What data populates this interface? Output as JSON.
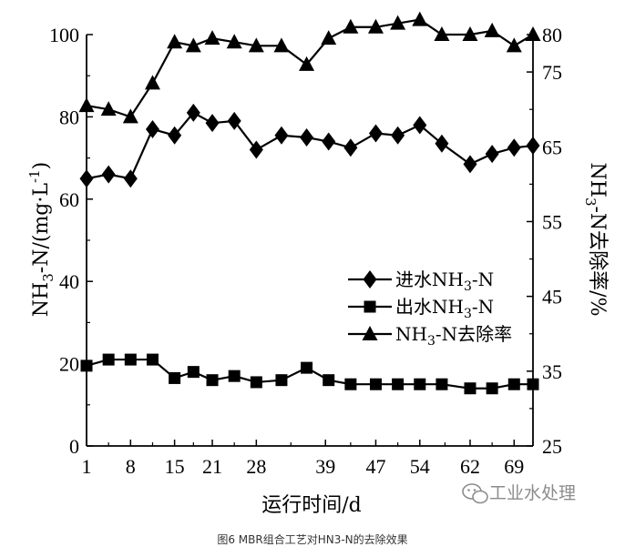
{
  "chart_data": {
    "type": "line",
    "title": "",
    "xlabel": "运行时间/d",
    "ylabel_left": "NH3-N/(mg·L-1)",
    "ylabel_right": "NH3-N去除率/%",
    "xlim": [
      1,
      72
    ],
    "ylim_left": [
      0,
      100
    ],
    "ylim_right": [
      25,
      80
    ],
    "x_ticks": [
      1,
      8,
      15,
      21,
      28,
      39,
      47,
      54,
      62,
      69
    ],
    "x_tick_labels": [
      "1",
      "8",
      "15",
      "21",
      "28",
      "39",
      "47",
      "54",
      "62",
      "69"
    ],
    "y_ticks_left": [
      0,
      20,
      40,
      60,
      80,
      100
    ],
    "y_ticks_right": [
      25,
      35,
      45,
      55,
      65,
      75,
      80
    ],
    "x": [
      1,
      4.5,
      8,
      11.5,
      15,
      18,
      21,
      24.5,
      28,
      32,
      36,
      39.5,
      43,
      47,
      50.5,
      54,
      57.5,
      62,
      65.5,
      69,
      72
    ],
    "series": [
      {
        "name": "进水NH3-N",
        "axis": "left",
        "marker": "diamond",
        "values": [
          65,
          66,
          65,
          77,
          75.5,
          81,
          78.5,
          79,
          72,
          75.5,
          75,
          74,
          72.5,
          76,
          75.5,
          78,
          73.5,
          68.5,
          71,
          72.5,
          73
        ]
      },
      {
        "name": "出水NH3-N",
        "axis": "left",
        "marker": "square",
        "values": [
          19.5,
          21,
          21,
          21,
          16.5,
          18,
          16,
          17,
          15.5,
          16,
          19,
          16,
          15,
          15,
          15,
          15,
          15,
          14,
          14,
          15,
          15
        ]
      },
      {
        "name": "NH3-N去除率",
        "axis": "right",
        "marker": "triangle",
        "values": [
          70.5,
          70,
          69,
          73.5,
          79,
          78.5,
          79.5,
          79,
          78.5,
          78.5,
          76,
          79.5,
          81,
          81,
          81.5,
          82,
          80,
          80,
          80.5,
          78.5,
          80
        ]
      }
    ],
    "legend": {
      "placement": "center-right",
      "entries": [
        {
          "base": "进水NH",
          "sub": "3",
          "tail": "-N"
        },
        {
          "base": "出水NH",
          "sub": "3",
          "tail": "-N"
        },
        {
          "base": "NH",
          "sub": "3",
          "tail": "-N去除率"
        }
      ]
    },
    "grid": false
  },
  "labels": {
    "xlabel": "运行时间/d",
    "ylabel_left": {
      "a": "NH",
      "sub": "3",
      "b": "-N/(mg·L",
      "sup": "-1",
      "c": ")"
    },
    "ylabel_right": {
      "a": "NH",
      "sub": "3",
      "b": "-N去除率/%"
    }
  },
  "watermark": "工业水处理",
  "caption": "图6   MBR组合工艺对HN3-N的去除效果",
  "colors": {
    "axis": "#000000",
    "line": "#000000",
    "watermark": "#8c8c8c"
  },
  "icons": {
    "watermark_icon": "wechat-icon"
  }
}
